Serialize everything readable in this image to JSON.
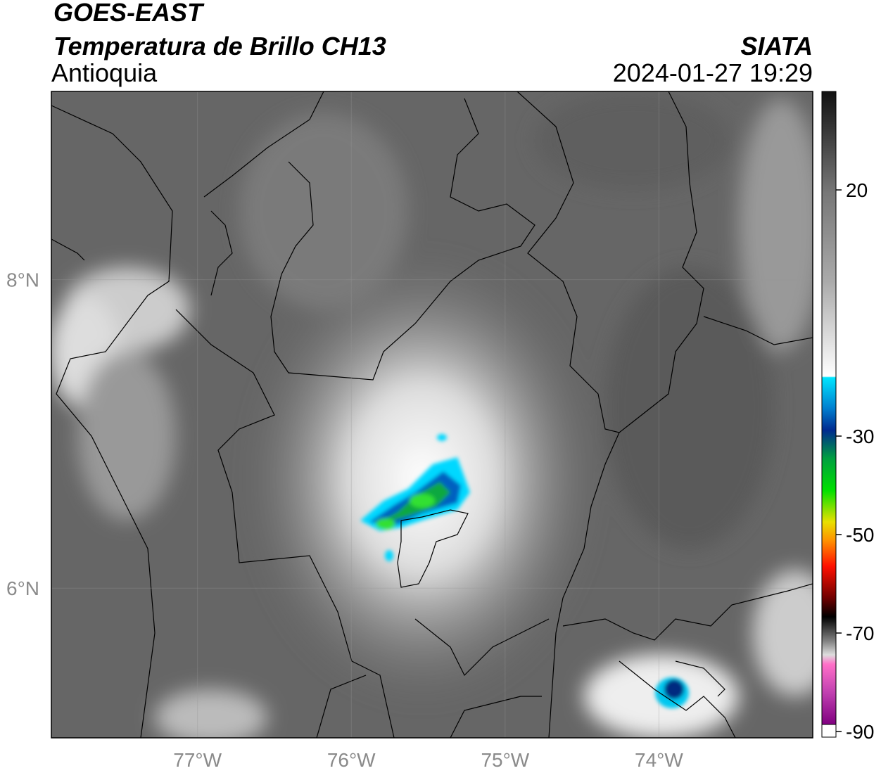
{
  "header": {
    "title": "GOES-EAST",
    "product": "Temperatura de Brillo CH13",
    "region": "Antioquia",
    "source": "SIATA",
    "datetime": "2024-01-27 19:29"
  },
  "map": {
    "lon_range": [
      -77.95,
      -73.0
    ],
    "lat_range": [
      5.03,
      9.22
    ],
    "lon_ticks": [
      {
        "value": -77,
        "label": "77°W"
      },
      {
        "value": -76,
        "label": "76°W"
      },
      {
        "value": -75,
        "label": "75°W"
      },
      {
        "value": -74,
        "label": "74°W"
      }
    ],
    "lat_ticks": [
      {
        "value": 8,
        "label": "8°N"
      },
      {
        "value": 6,
        "label": "6°N"
      }
    ]
  },
  "colorbar": {
    "range": [
      -90,
      40
    ],
    "ticks": [
      20,
      -30,
      -50,
      -70,
      -90
    ]
  }
}
